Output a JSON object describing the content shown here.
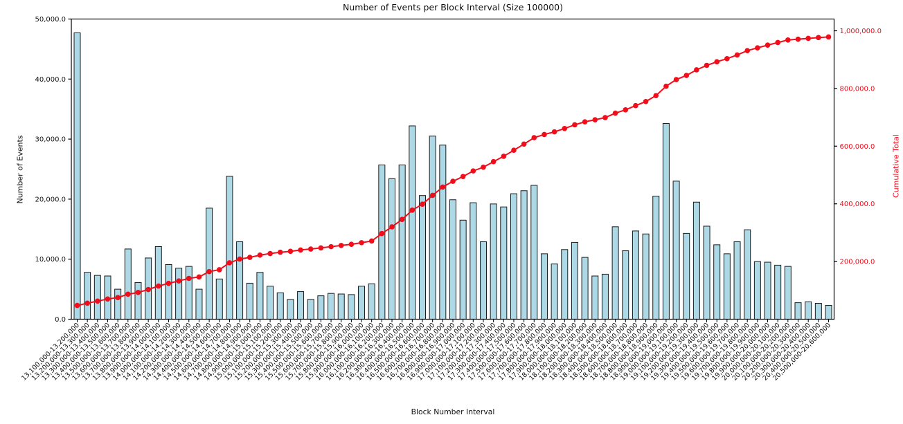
{
  "chart_data": {
    "type": "bar",
    "title": "Number of Events per Block Interval (Size 100000)",
    "xlabel": "Block Number Interval",
    "grid": false,
    "legend": "none",
    "background_color": "#ffffff",
    "x_tick_rotation": 45,
    "left_axis": {
      "label": "Number of Events",
      "min": 0,
      "max": 50000,
      "tick_values": [
        0,
        10000,
        20000,
        30000,
        40000,
        50000
      ],
      "tick_labels": [
        "0.0",
        "10,000.0",
        "20,000.0",
        "30,000.0",
        "40,000.0",
        "50,000.0"
      ],
      "color": "#111111"
    },
    "right_axis": {
      "label": "Cumulative Total",
      "min": 0,
      "max": 1000000,
      "tick_values": [
        200000,
        400000,
        600000,
        800000,
        1000000
      ],
      "tick_labels": [
        "200,000.0",
        "400,000.0",
        "600,000.0",
        "800,000.0",
        "1,000,000.0"
      ],
      "color": "#f20d1b"
    },
    "categories": [
      "13,100,000-13,200,000",
      "13,200,000-13,300,000",
      "13,300,000-13,400,000",
      "13,400,000-13,500,000",
      "13,500,000-13,600,000",
      "13,600,000-13,700,000",
      "13,700,000-13,800,000",
      "13,800,000-13,900,000",
      "13,900,000-14,000,000",
      "14,000,000-14,100,000",
      "14,100,000-14,200,000",
      "14,200,000-14,300,000",
      "14,300,000-14,400,000",
      "14,400,000-14,500,000",
      "14,500,000-14,600,000",
      "14,600,000-14,700,000",
      "14,700,000-14,800,000",
      "14,800,000-14,900,000",
      "14,900,000-15,000,000",
      "15,000,000-15,100,000",
      "15,100,000-15,200,000",
      "15,200,000-15,300,000",
      "15,300,000-15,400,000",
      "15,400,000-15,500,000",
      "15,500,000-15,600,000",
      "15,600,000-15,700,000",
      "15,700,000-15,800,000",
      "15,800,000-15,900,000",
      "15,900,000-16,000,000",
      "16,000,000-16,100,000",
      "16,100,000-16,200,000",
      "16,200,000-16,300,000",
      "16,300,000-16,400,000",
      "16,400,000-16,500,000",
      "16,500,000-16,600,000",
      "16,600,000-16,700,000",
      "16,700,000-16,800,000",
      "16,800,000-16,900,000",
      "16,900,000-17,000,000",
      "17,000,000-17,100,000",
      "17,100,000-17,200,000",
      "17,200,000-17,300,000",
      "17,300,000-17,400,000",
      "17,400,000-17,500,000",
      "17,500,000-17,600,000",
      "17,600,000-17,700,000",
      "17,700,000-17,800,000",
      "17,800,000-17,900,000",
      "17,900,000-18,000,000",
      "18,000,000-18,100,000",
      "18,100,000-18,200,000",
      "18,200,000-18,300,000",
      "18,300,000-18,400,000",
      "18,400,000-18,500,000",
      "18,500,000-18,600,000",
      "18,600,000-18,700,000",
      "18,700,000-18,800,000",
      "18,800,000-18,900,000",
      "18,900,000-19,000,000",
      "19,000,000-19,100,000",
      "19,100,000-19,200,000",
      "19,200,000-19,300,000",
      "19,300,000-19,400,000",
      "19,400,000-19,500,000",
      "19,500,000-19,600,000",
      "19,600,000-19,700,000",
      "19,700,000-19,800,000",
      "19,800,000-19,900,000",
      "19,900,000-20,000,000",
      "20,000,000-20,100,000",
      "20,100,000-20,200,000",
      "20,200,000-20,300,000",
      "20,300,000-20,400,000",
      "20,400,000-20,500,000",
      "20,500,000-20,600,000"
    ],
    "series": [
      {
        "name": "Number of Events",
        "type": "bar",
        "axis": "left",
        "color": "#add8e6",
        "edge_color": "#1a1a1a",
        "values": [
          47700,
          7800,
          7300,
          7200,
          5000,
          11700,
          6100,
          10200,
          12100,
          9100,
          8500,
          8800,
          5000,
          18500,
          6700,
          23800,
          12900,
          6000,
          7800,
          5500,
          4400,
          3300,
          4600,
          3300,
          3900,
          4300,
          4200,
          4100,
          5500,
          5900,
          25700,
          23400,
          25700,
          32200,
          20600,
          30500,
          29000,
          19900,
          16500,
          19400,
          12900,
          19200,
          18700,
          20900,
          21400,
          22300,
          10900,
          9200,
          11600,
          12800,
          10300,
          7200,
          7500,
          15400,
          11400,
          14700,
          14200,
          20500,
          32600,
          23000,
          14300,
          19500,
          15500,
          12400,
          10900,
          12900,
          14900,
          9600,
          9500,
          9000,
          8800,
          2750,
          2900,
          2650,
          2300
        ]
      },
      {
        "name": "Cumulative Total",
        "type": "line",
        "axis": "right",
        "color": "#f20d1b",
        "marker": "circle",
        "values": [
          47700,
          55500,
          62800,
          70000,
          75000,
          86700,
          92800,
          103000,
          115100,
          124200,
          132700,
          141500,
          146500,
          165000,
          171700,
          195500,
          208400,
          214400,
          222200,
          227700,
          232100,
          235400,
          240000,
          243300,
          247200,
          251500,
          255700,
          259800,
          265300,
          271200,
          296900,
          320300,
          346000,
          378200,
          398800,
          429300,
          458300,
          478200,
          494700,
          514100,
          527000,
          546200,
          564900,
          585800,
          607200,
          629500,
          640400,
          649600,
          661200,
          674000,
          684300,
          691500,
          699000,
          714400,
          725800,
          740500,
          754700,
          775200,
          807800,
          830800,
          845100,
          864600,
          880100,
          892500,
          903400,
          916300,
          931200,
          940800,
          950300,
          959300,
          968100,
          970850,
          973750,
          976400,
          978700
        ]
      }
    ]
  }
}
